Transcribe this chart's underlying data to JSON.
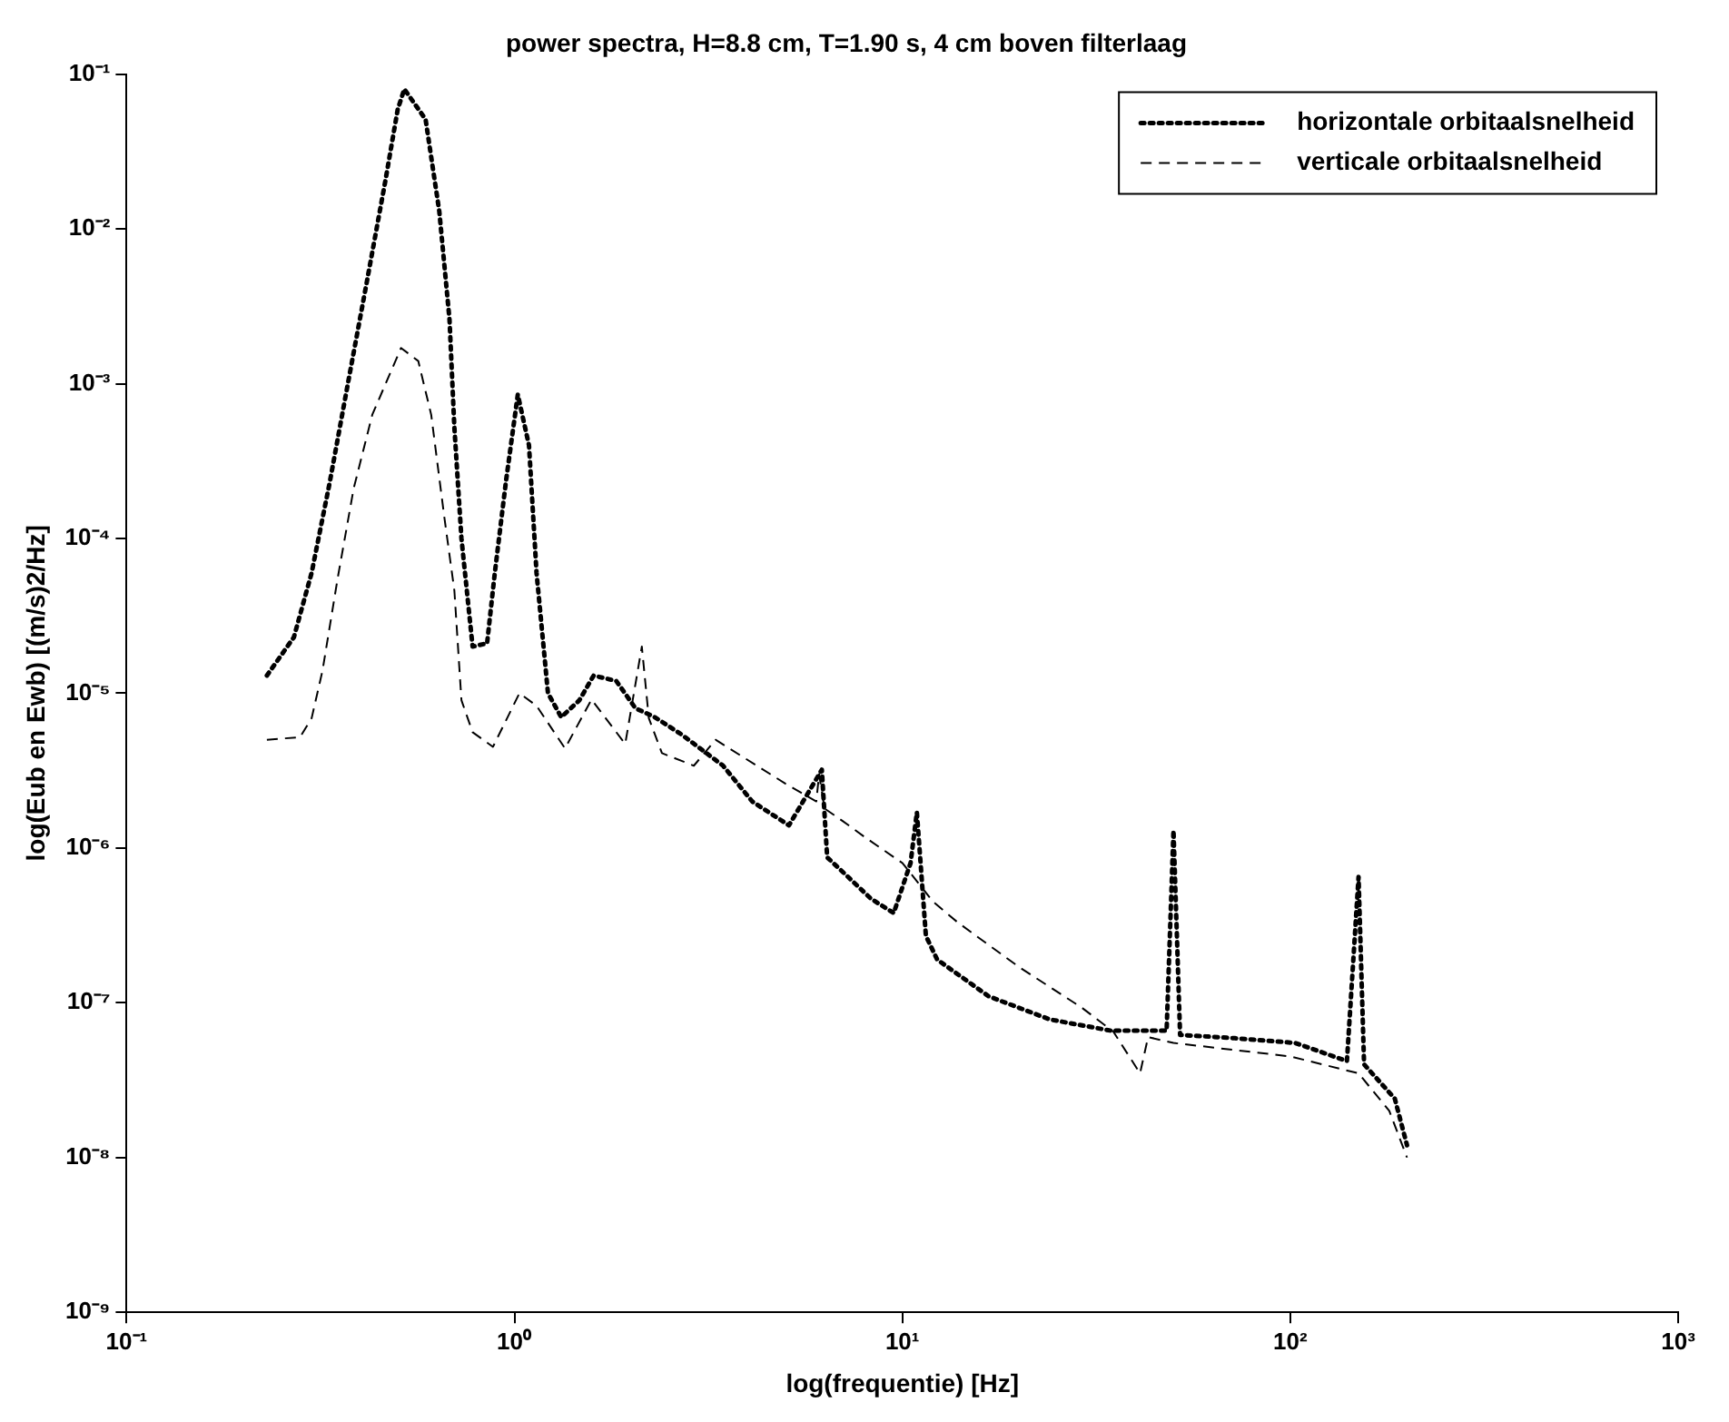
{
  "chart_data": {
    "type": "line",
    "title": "power spectra, H=8.8 cm, T=1.90 s, 4 cm boven filterlaag",
    "xlabel": "log(frequentie) [Hz]",
    "ylabel": "log(Eub en Ewb) [(m/s)2/Hz]",
    "log": "xy",
    "grid": false,
    "legend": "top right",
    "marker": "none",
    "xlim": [
      0.1,
      1000
    ],
    "xticks": [
      {
        "value": 0.1,
        "label": "10⁻¹"
      },
      {
        "value": 1,
        "label": "10⁰"
      },
      {
        "value": 10,
        "label": "10¹"
      },
      {
        "value": 100,
        "label": "10²"
      },
      {
        "value": 1000,
        "label": "10³"
      }
    ],
    "ylim": [
      1e-09,
      0.1
    ],
    "yticks": [
      {
        "value": 1e-09,
        "label": "10⁻⁹"
      },
      {
        "value": 1e-08,
        "label": "10⁻⁸"
      },
      {
        "value": 1e-07,
        "label": "10⁻⁷"
      },
      {
        "value": 1e-06,
        "label": "10⁻⁶"
      },
      {
        "value": 1e-05,
        "label": "10⁻⁵"
      },
      {
        "value": 0.0001,
        "label": "10⁻⁴"
      },
      {
        "value": 0.001,
        "label": "10⁻³"
      },
      {
        "value": 0.01,
        "label": "10⁻²"
      },
      {
        "value": 0.1,
        "label": "10⁻¹"
      }
    ],
    "series": [
      {
        "name": "horizontale orbitaalsnelheid",
        "color": "#000000",
        "line_style": "dotted",
        "x": [
          0.23,
          0.27,
          0.3,
          0.334,
          0.372,
          0.416,
          0.464,
          0.5,
          0.52,
          0.59,
          0.64,
          0.68,
          0.7,
          0.73,
          0.78,
          0.85,
          0.89,
          0.95,
          1.02,
          1.09,
          1.14,
          1.22,
          1.32,
          1.47,
          1.6,
          1.83,
          2.05,
          2.3,
          2.7,
          3.45,
          4.1,
          5.1,
          6.2,
          6.4,
          7.2,
          8.3,
          9.5,
          10.5,
          10.9,
          11.5,
          12.3,
          16.7,
          24,
          34.5,
          48,
          50,
          52,
          72,
          103,
          140,
          150,
          155,
          186,
          200
        ],
        "values": [
          1.3e-05,
          2.3e-05,
          6e-05,
          0.00023,
          0.001,
          0.0045,
          0.02,
          0.059,
          0.08,
          0.051,
          0.013,
          0.0026,
          0.00052,
          0.0001,
          2e-05,
          2.1e-05,
          6e-05,
          0.00023,
          0.00085,
          0.0004,
          6e-05,
          1e-05,
          7e-06,
          9e-06,
          1.3e-05,
          1.2e-05,
          8e-06,
          7e-06,
          5.4e-06,
          3.4e-06,
          2e-06,
          1.4e-06,
          3.2e-06,
          8.7e-07,
          6.6e-07,
          4.7e-07,
          3.8e-07,
          8e-07,
          1.7e-06,
          2.7e-07,
          1.9e-07,
          1.1e-07,
          7.8e-08,
          6.6e-08,
          6.6e-08,
          1.3e-06,
          6.2e-08,
          5.9e-08,
          5.5e-08,
          4.2e-08,
          6.5e-07,
          4e-08,
          2.4e-08,
          1.2e-08
        ]
      },
      {
        "name": "verticale orbitaalsnelheid",
        "color": "#000000",
        "line_style": "dashed",
        "x": [
          0.23,
          0.28,
          0.3,
          0.32,
          0.35,
          0.385,
          0.43,
          0.51,
          0.565,
          0.61,
          0.66,
          0.7,
          0.73,
          0.78,
          0.88,
          1.03,
          1.14,
          1.35,
          1.58,
          1.93,
          2.13,
          2.22,
          2.4,
          2.9,
          3.3,
          5,
          6,
          6.1,
          6.3,
          7,
          8.1,
          10,
          12,
          13.9,
          20,
          29,
          35,
          41,
          43,
          50,
          100,
          150,
          180,
          200
        ],
        "values": [
          5e-06,
          5.2e-06,
          6.9e-06,
          1.4e-05,
          5.5e-05,
          0.00021,
          0.00063,
          0.0017,
          0.0014,
          0.00063,
          0.000135,
          4.6e-05,
          9e-06,
          5.6e-06,
          4.5e-06,
          1e-05,
          8.3e-06,
          4.4e-06,
          9.1e-06,
          4.7e-06,
          2e-05,
          6.9e-06,
          4.1e-06,
          3.4e-06,
          5e-06,
          2.6e-06,
          2e-06,
          3e-06,
          1.8e-06,
          1.5e-06,
          1.15e-06,
          8e-07,
          4.5e-07,
          3.3e-07,
          1.7e-07,
          9.3e-08,
          6.5e-08,
          3.5e-08,
          6e-08,
          5.5e-08,
          4.5e-08,
          3.5e-08,
          2e-08,
          1e-08
        ]
      }
    ]
  }
}
